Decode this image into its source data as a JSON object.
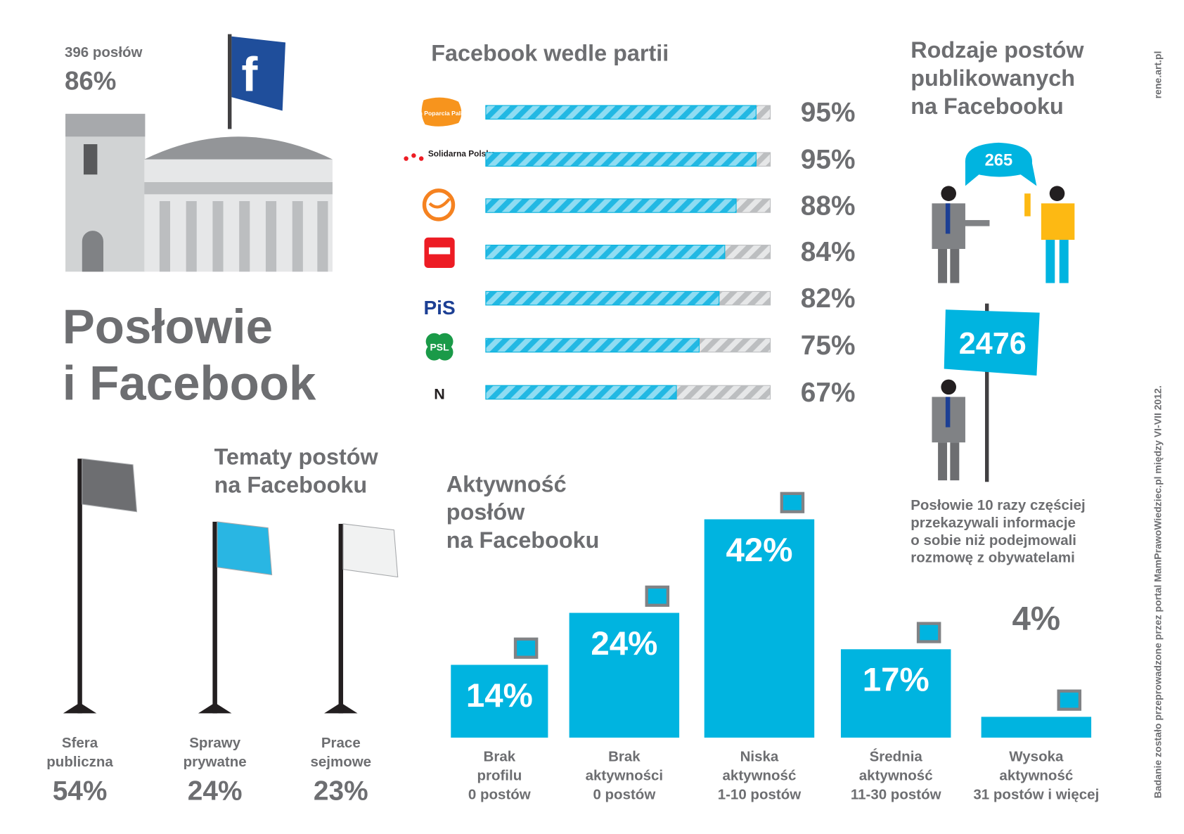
{
  "header": {
    "count": "396 posłów",
    "share": "86%",
    "title": "Posłowie\ni Facebook",
    "logo": "f"
  },
  "chart_data": [
    {
      "type": "hbar",
      "title": "Facebook wedle partii",
      "categories": [
        "Ruch Poparcia Palikota",
        "Solidarna Polska",
        null,
        null,
        "PiS",
        "PSL",
        "N"
      ],
      "values": [
        95,
        95,
        88,
        84,
        82,
        75,
        67
      ],
      "value_labels": [
        "95%",
        "95%",
        "88%",
        "84%",
        "82%",
        "75%",
        "67%"
      ],
      "xlim": [
        0,
        100
      ],
      "color": "#00b4e0"
    },
    {
      "type": "flag",
      "title": "Tematy postów\nna Facebooku",
      "categories": [
        "Sfera\npubliczna",
        "Sprawy\nprywatne",
        "Prace\nsejmowe"
      ],
      "values": [
        54,
        24,
        23
      ],
      "value_labels": [
        "54%",
        "24%",
        "23%"
      ]
    },
    {
      "type": "bar",
      "title": "Aktywność\nposłów\nna Facebooku",
      "categories": [
        "Brak\nprofilu\n0 postów",
        "Brak\naktywności\n0 postów",
        "Niska\naktywność\n1-10 postów",
        "Średnia\naktywność\n11-30 postów",
        "Wysoka\naktywność\n31 postów i więcej"
      ],
      "values": [
        14,
        24,
        42,
        17,
        4
      ],
      "value_labels": [
        "14%",
        "24%",
        "42%",
        "17%",
        "4%"
      ],
      "color": "#00b4e0"
    }
  ],
  "post_types": {
    "title": "Rodzaje postów\npublikowanych\nna Facebooku",
    "conversations": "265",
    "own_posts": "2476",
    "note": "Posłowie 10 razy częściej\nprzekazywali informacje\no sobie niż podejmowali\nrozmowę z obywatelami"
  },
  "credits": {
    "author": "rene.art.pl",
    "source": "Badanie zostało przeprowadzone przez portal MamPrawoWiedziec.pl między VI-VII 2012."
  }
}
